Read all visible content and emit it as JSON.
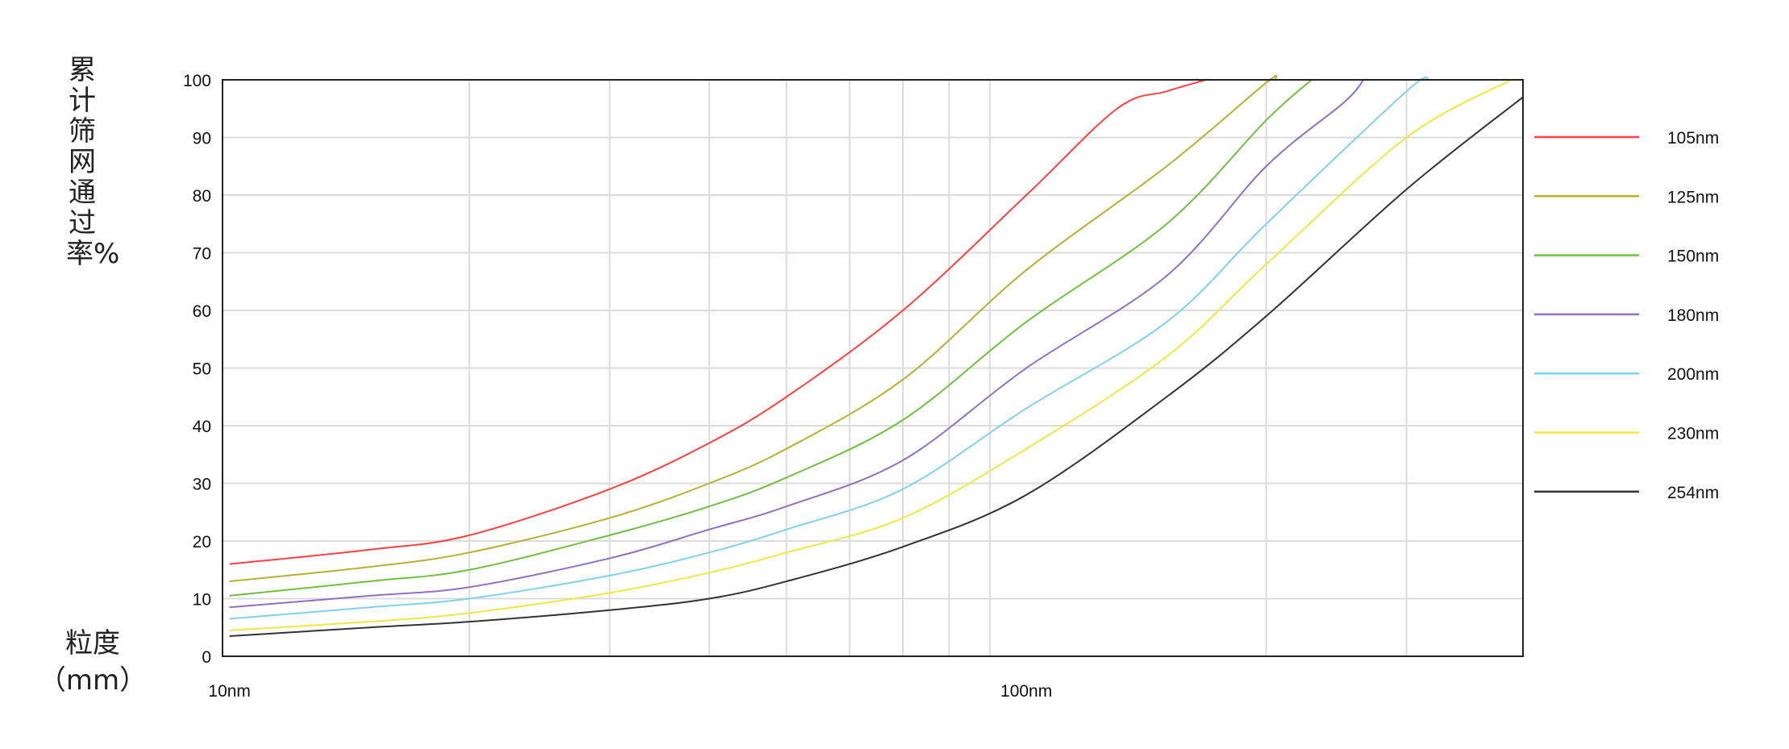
{
  "chart_data": {
    "type": "line",
    "ylabel": "累计筛网通过率%",
    "xlabel": "粒度（mm）",
    "x_scale": "log",
    "xlim": [
      9.8,
      420
    ],
    "ylim": [
      0,
      100
    ],
    "grid": true,
    "legend_position": "right",
    "y_ticks": [
      "0",
      "10",
      "20",
      "30",
      "40",
      "50",
      "60",
      "70",
      "80",
      "90",
      "100"
    ],
    "x_tick_labels": [
      {
        "value": 10,
        "label": "10nm"
      },
      {
        "value": 100,
        "label": "100nm"
      }
    ],
    "x_gridlines": [
      20,
      30,
      40,
      50,
      60,
      70,
      80,
      90,
      200,
      300
    ],
    "series": [
      {
        "name": "105nm",
        "color": "#ff4040",
        "x": [
          10,
          15,
          20,
          30,
          40,
          50,
          70,
          100,
          130,
          150,
          168
        ],
        "y": [
          16,
          18.5,
          21,
          29,
          37,
          45,
          60,
          80,
          95,
          98,
          100
        ]
      },
      {
        "name": "125nm",
        "color": "#b8b030",
        "x": [
          10,
          15,
          20,
          30,
          40,
          50,
          70,
          100,
          150,
          200,
          205
        ],
        "y": [
          13,
          15.5,
          18,
          24,
          30,
          36,
          48,
          67,
          85,
          99.5,
          100
        ]
      },
      {
        "name": "150nm",
        "color": "#70c040",
        "x": [
          10,
          15,
          20,
          30,
          40,
          50,
          70,
          100,
          150,
          200,
          228
        ],
        "y": [
          10.5,
          13,
          15,
          21,
          26,
          31,
          41,
          58,
          75,
          93,
          100
        ]
      },
      {
        "name": "180nm",
        "color": "#9070c0",
        "x": [
          10,
          15,
          20,
          30,
          40,
          50,
          70,
          100,
          150,
          200,
          250,
          265
        ],
        "y": [
          8.5,
          10.5,
          12,
          17,
          22,
          26,
          34,
          50,
          66,
          85,
          96,
          100
        ]
      },
      {
        "name": "200nm",
        "color": "#80d0f0",
        "x": [
          10,
          15,
          20,
          30,
          40,
          50,
          70,
          100,
          150,
          200,
          300,
          320
        ],
        "y": [
          6.5,
          8.5,
          10,
          14,
          18,
          22,
          29,
          43,
          58,
          75,
          98,
          100
        ]
      },
      {
        "name": "230nm",
        "color": "#f0e840",
        "x": [
          10,
          15,
          20,
          30,
          40,
          50,
          70,
          100,
          150,
          200,
          300,
          406
        ],
        "y": [
          4.5,
          6,
          7.5,
          11,
          14.5,
          18,
          24,
          36,
          52,
          68,
          90,
          100
        ]
      },
      {
        "name": "254nm",
        "color": "#333333",
        "x": [
          10,
          15,
          20,
          30,
          40,
          50,
          70,
          100,
          150,
          200,
          300,
          420
        ],
        "y": [
          3.5,
          5,
          6,
          8,
          10,
          13,
          19,
          28,
          45,
          59,
          81,
          97
        ]
      }
    ]
  }
}
